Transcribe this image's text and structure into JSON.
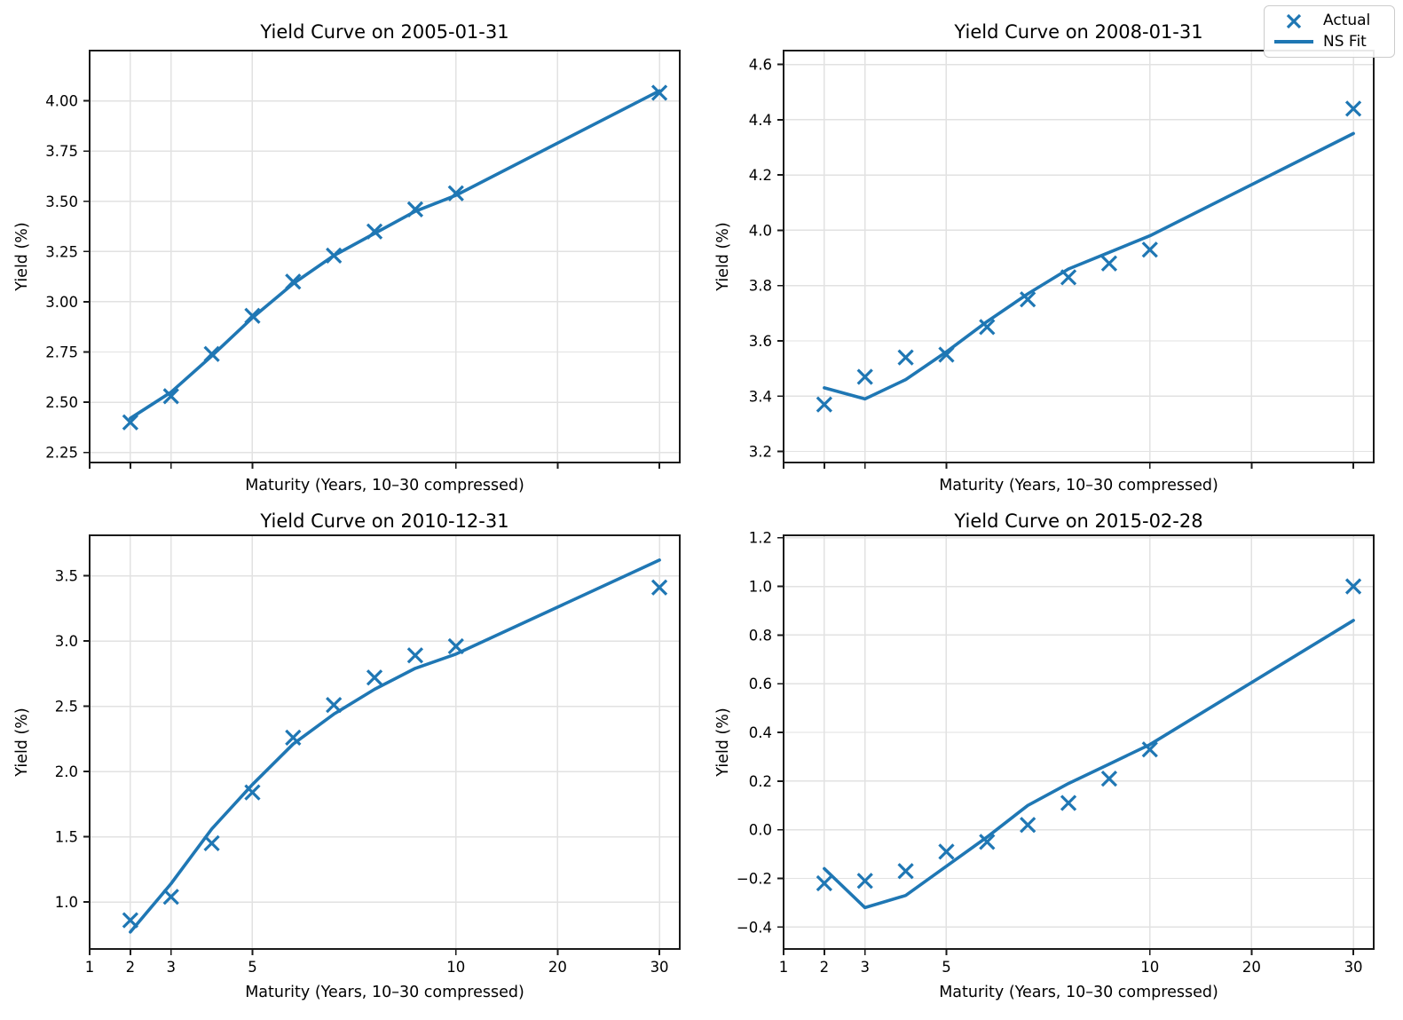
{
  "legend": {
    "items": [
      {
        "label": "Actual",
        "symbol": "x-marker"
      },
      {
        "label": "NS Fit",
        "symbol": "line"
      }
    ]
  },
  "style": {
    "series_color": "#1f77b4",
    "grid_color": "#e2e2e2",
    "spine_color": "#1a1a1a",
    "text_color": "#000000",
    "background": "#ffffff"
  },
  "axes_common": {
    "xlabel": "Maturity (Years, 10–30 compressed)",
    "ylabel": "Yield (%)",
    "xticks": [
      1,
      2,
      3,
      5,
      10,
      20,
      30
    ],
    "xlim_transformed": [
      1,
      15.5
    ],
    "x_scale": "linear up to 10 years, maturities beyond 10 compressed 4x"
  },
  "chart_data": [
    {
      "type": "scatter",
      "title": "Yield Curve on 2005-01-31",
      "xlabel": "Maturity (Years, 10–30 compressed)",
      "ylabel": "Yield (%)",
      "maturities": [
        2,
        3,
        4,
        5,
        6,
        7,
        8,
        9,
        10,
        30
      ],
      "series": [
        {
          "name": "Actual",
          "style": "x-marker",
          "values": [
            2.4,
            2.53,
            2.74,
            2.93,
            3.1,
            3.23,
            3.35,
            3.46,
            3.54,
            4.04
          ]
        },
        {
          "name": "NS Fit",
          "style": "line",
          "values": [
            2.42,
            2.55,
            2.73,
            2.92,
            3.09,
            3.23,
            3.34,
            3.45,
            3.53,
            4.05
          ]
        }
      ],
      "ylim": [
        2.2,
        4.25
      ],
      "yticks": [
        2.25,
        2.5,
        2.75,
        3.0,
        3.25,
        3.5,
        3.75,
        4.0
      ],
      "ytick_decimals": 2,
      "grid": true,
      "show_xtick_labels": false
    },
    {
      "type": "scatter",
      "title": "Yield Curve on 2008-01-31",
      "xlabel": "Maturity (Years, 10–30 compressed)",
      "ylabel": "Yield (%)",
      "maturities": [
        2,
        3,
        4,
        5,
        6,
        7,
        8,
        9,
        10,
        30
      ],
      "series": [
        {
          "name": "Actual",
          "style": "x-marker",
          "values": [
            3.37,
            3.47,
            3.54,
            3.55,
            3.65,
            3.75,
            3.83,
            3.88,
            3.93,
            4.44
          ]
        },
        {
          "name": "NS Fit",
          "style": "line",
          "values": [
            3.43,
            3.39,
            3.46,
            3.56,
            3.67,
            3.77,
            3.86,
            3.92,
            3.98,
            4.35
          ]
        }
      ],
      "ylim": [
        3.16,
        4.65
      ],
      "yticks": [
        3.2,
        3.4,
        3.6,
        3.8,
        4.0,
        4.2,
        4.4,
        4.6
      ],
      "ytick_decimals": 1,
      "grid": true,
      "show_xtick_labels": false
    },
    {
      "type": "scatter",
      "title": "Yield Curve on 2010-12-31",
      "xlabel": "Maturity (Years, 10–30 compressed)",
      "ylabel": "Yield (%)",
      "maturities": [
        2,
        3,
        4,
        5,
        6,
        7,
        8,
        9,
        10,
        30
      ],
      "series": [
        {
          "name": "Actual",
          "style": "x-marker",
          "values": [
            0.86,
            1.04,
            1.45,
            1.84,
            2.26,
            2.51,
            2.72,
            2.89,
            2.96,
            3.41
          ]
        },
        {
          "name": "NS Fit",
          "style": "line",
          "values": [
            0.77,
            1.14,
            1.56,
            1.9,
            2.21,
            2.44,
            2.63,
            2.79,
            2.9,
            3.62
          ]
        }
      ],
      "ylim": [
        0.64,
        3.81
      ],
      "yticks": [
        1.0,
        1.5,
        2.0,
        2.5,
        3.0,
        3.5
      ],
      "ytick_decimals": 1,
      "grid": true,
      "show_xtick_labels": true
    },
    {
      "type": "scatter",
      "title": "Yield Curve on 2015-02-28",
      "xlabel": "Maturity (Years, 10–30 compressed)",
      "ylabel": "Yield (%)",
      "maturities": [
        2,
        3,
        4,
        5,
        6,
        7,
        8,
        9,
        10,
        30
      ],
      "series": [
        {
          "name": "Actual",
          "style": "x-marker",
          "values": [
            -0.22,
            -0.21,
            -0.17,
            -0.09,
            -0.05,
            0.02,
            0.11,
            0.21,
            0.33,
            1.0
          ]
        },
        {
          "name": "NS Fit",
          "style": "line",
          "values": [
            -0.16,
            -0.32,
            -0.27,
            -0.15,
            -0.03,
            0.1,
            0.19,
            0.27,
            0.35,
            0.86
          ]
        }
      ],
      "ylim": [
        -0.49,
        1.21
      ],
      "yticks": [
        -0.4,
        -0.2,
        0.0,
        0.2,
        0.4,
        0.6,
        0.8,
        1.0,
        1.2
      ],
      "ytick_decimals": 1,
      "grid": true,
      "show_xtick_labels": true
    }
  ]
}
